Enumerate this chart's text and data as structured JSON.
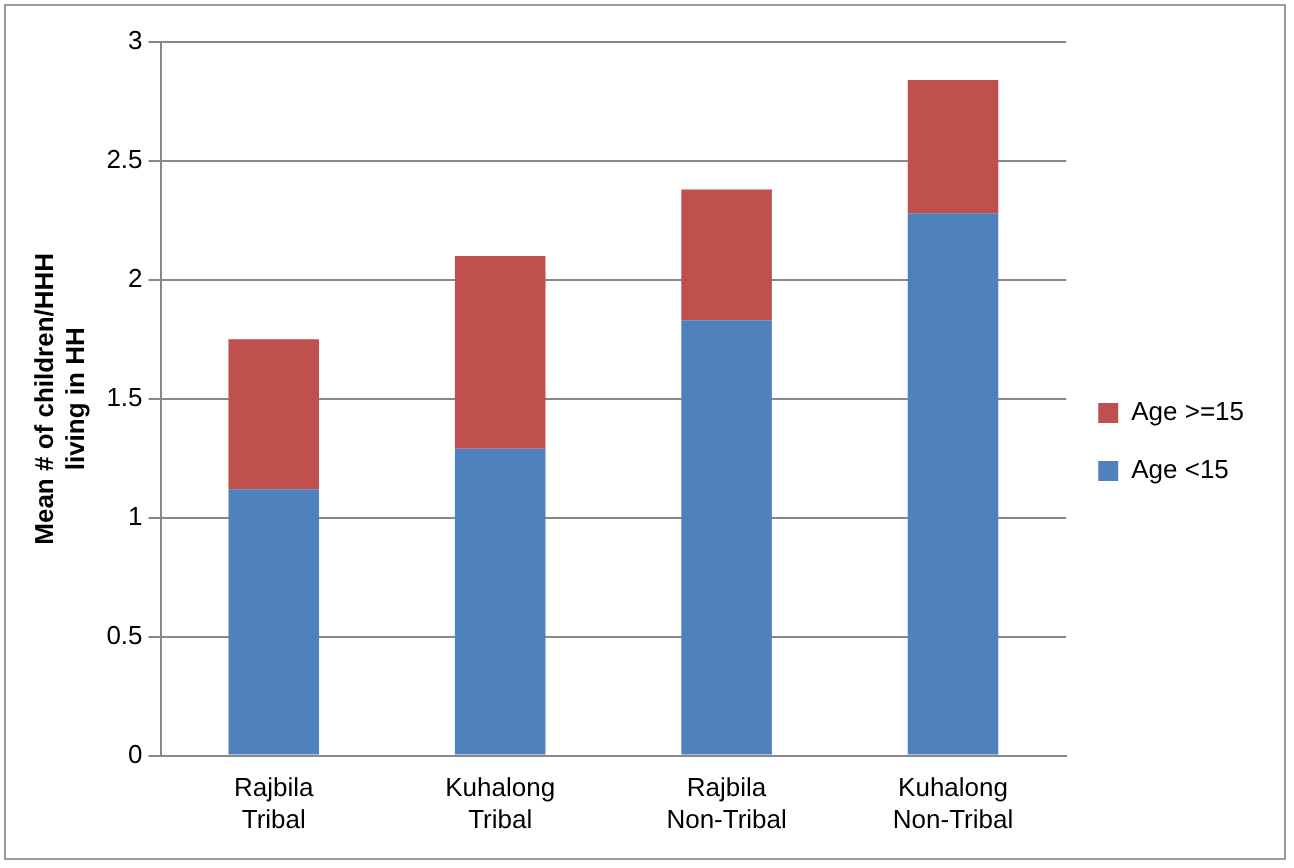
{
  "chart_data": {
    "type": "bar",
    "stacked": true,
    "ylabel": "Mean # of children/HHH living in HH",
    "categories": [
      "Rajbila Tribal",
      "Kuhalong Tribal",
      "Rajbila Non-Tribal",
      "Kuhalong Non-Tribal"
    ],
    "series": [
      {
        "name": "Age <15",
        "color": "#4f81bd",
        "values": [
          1.12,
          1.29,
          1.83,
          2.28
        ]
      },
      {
        "name": "Age >=15",
        "color": "#c0504d",
        "values": [
          0.63,
          0.81,
          0.55,
          0.56
        ]
      }
    ],
    "ylim": [
      0,
      3
    ],
    "yticks": [
      0,
      0.5,
      1,
      1.5,
      2,
      2.5,
      3
    ],
    "grid": "y",
    "legend": "right"
  }
}
